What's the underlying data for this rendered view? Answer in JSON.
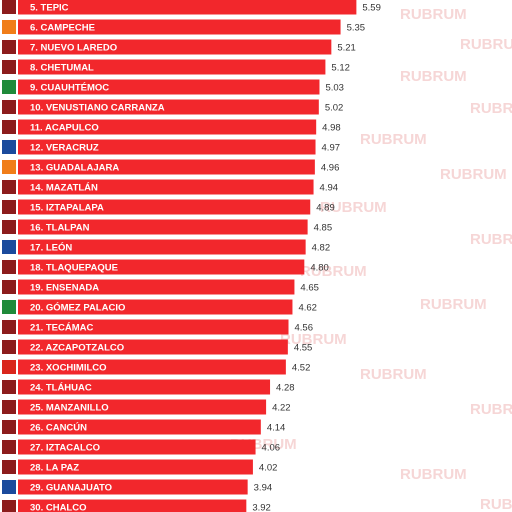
{
  "chart_data": {
    "type": "bar",
    "watermark": "RUBRUM",
    "categories": [
      "5. TEPIC",
      "6. CAMPECHE",
      "7. NUEVO LAREDO",
      "8. CHETUMAL",
      "9. CUAUHTÉMOC",
      "10. VENUSTIANO CARRANZA",
      "11. ACAPULCO",
      "12. VERACRUZ",
      "13. GUADALAJARA",
      "14. MAZATLÁN",
      "15. IZTAPALAPA",
      "16. TLALPAN",
      "17. LEÓN",
      "18. TLAQUEPAQUE",
      "19. ENSENADA",
      "20. GÓMEZ PALACIO",
      "21. TECÁMAC",
      "22. AZCAPOTZALCO",
      "23. XOCHIMILCO",
      "24. TLÁHUAC",
      "25. MANZANILLO",
      "26. CANCÚN",
      "27. IZTACALCO",
      "28. LA PAZ",
      "29. GUANAJUATO",
      "30. CHALCO"
    ],
    "values": [
      5.59,
      5.35,
      5.21,
      5.12,
      5.03,
      5.02,
      4.98,
      4.97,
      4.96,
      4.94,
      4.89,
      4.85,
      4.82,
      4.8,
      4.65,
      4.62,
      4.56,
      4.55,
      4.52,
      4.28,
      4.22,
      4.14,
      4.06,
      4.02,
      3.94,
      3.92
    ],
    "value_labels": [
      "5.59",
      "5.35",
      "5.21",
      "5.12",
      "5.03",
      "5.02",
      "4.98",
      "4.97",
      "4.96",
      "4.94",
      "4.89",
      "4.85",
      "4.82",
      "4.80",
      "4.65",
      "4.62",
      "4.56",
      "4.55",
      "4.52",
      "4.28",
      "4.22",
      "4.14",
      "4.06",
      "4.02",
      "3.94",
      "3.92"
    ],
    "color": "#f2272c",
    "icon_colors": [
      "#8c1c1c",
      "#f07d19",
      "#8c1c1c",
      "#8c1c1c",
      "#1f8a3a",
      "#8c1c1c",
      "#8c1c1c",
      "#1a4a9c",
      "#f07d19",
      "#8c1c1c",
      "#8c1c1c",
      "#8c1c1c",
      "#1a4a9c",
      "#8c1c1c",
      "#8c1c1c",
      "#1f8a3a",
      "#8c1c1c",
      "#8c1c1c",
      "#d9261c",
      "#8c1c1c",
      "#8c1c1c",
      "#8c1c1c",
      "#8c1c1c",
      "#8c1c1c",
      "#1a4a9c",
      "#8c1c1c"
    ]
  }
}
